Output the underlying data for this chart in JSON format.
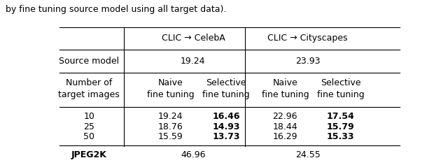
{
  "caption_top": "by fine tuning source model using all target data).",
  "col_headers_top_celeba": "CLIC → CelebA",
  "col_headers_top_city": "CLIC → Cityscapes",
  "source_model_label": "Source model",
  "source_celeba": "19.24",
  "source_city": "23.93",
  "subheader_row_label": "Number of\ntarget images",
  "subheader_cols": [
    "Naive\nfine tuning",
    "Selective\nfine tuning",
    "Naive\nfine tuning",
    "Selective\nfine tuning"
  ],
  "data_rows": [
    [
      "10",
      "19.24",
      "16.46",
      "22.96",
      "17.54"
    ],
    [
      "25",
      "18.76",
      "14.93",
      "18.44",
      "15.79"
    ],
    [
      "50",
      "15.59",
      "13.73",
      "16.29",
      "15.33"
    ]
  ],
  "jpeg_label": "JPEG2K",
  "jpeg_celeba": "46.96",
  "jpeg_city": "24.55",
  "figsize": [
    6.4,
    2.36
  ],
  "dpi": 100,
  "fs": 9
}
